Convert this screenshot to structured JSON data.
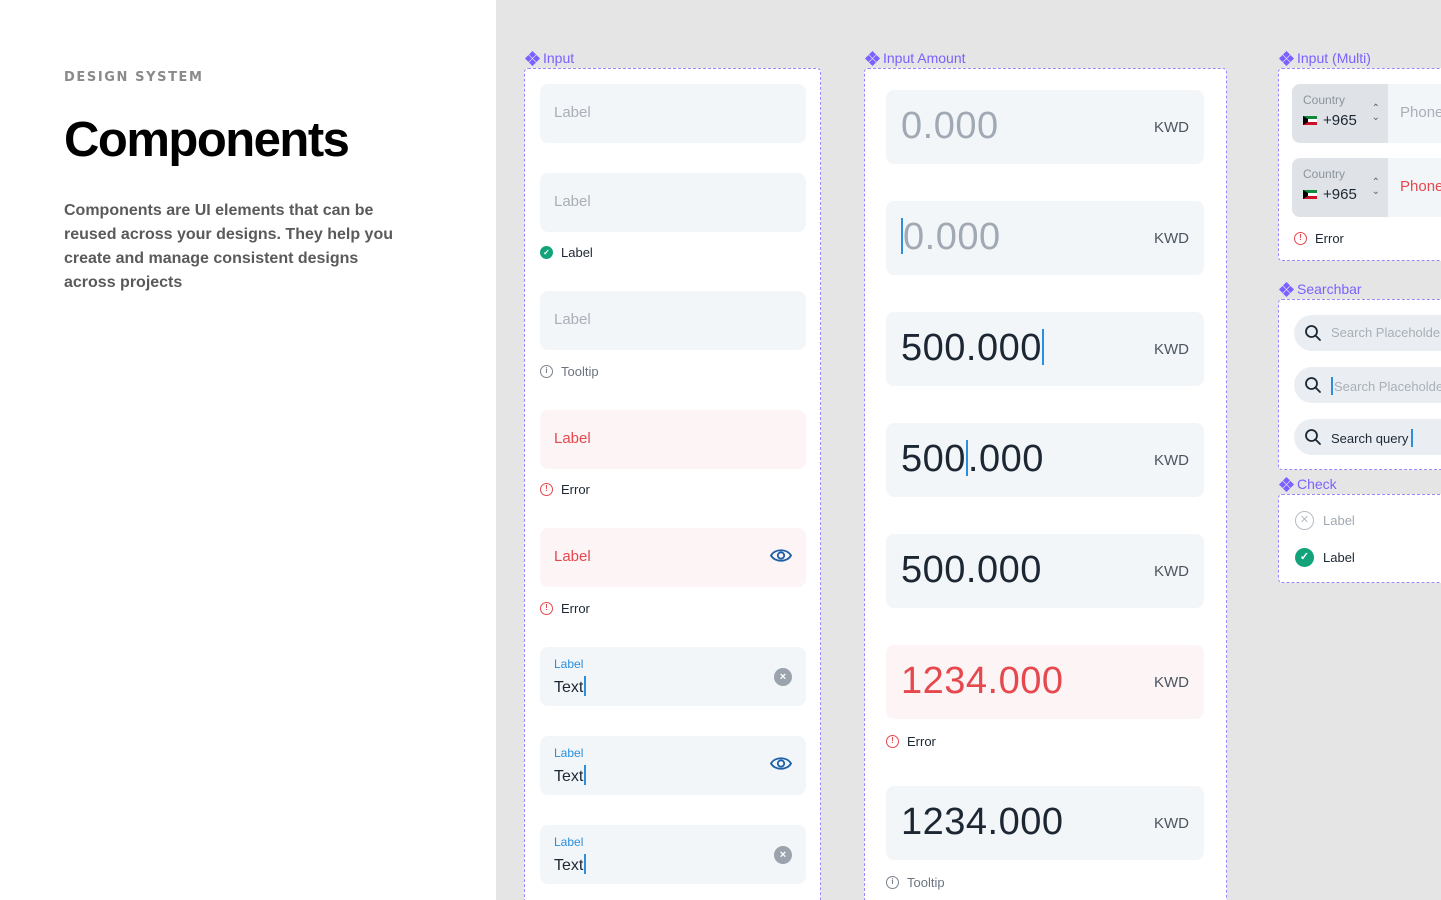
{
  "intro": {
    "eyebrow": "DESIGN SYSTEM",
    "title": "Components",
    "description": "Components are UI elements that can be reused across your designs. They help you create and manage consistent designs across projects"
  },
  "input_frame": {
    "title": "Input",
    "fields": [
      {
        "label": "Label"
      },
      {
        "label": "Label",
        "helper": "Label",
        "helper_icon": "check-circle-icon"
      },
      {
        "label": "Label",
        "helper": "Tooltip",
        "helper_icon": "info-icon"
      },
      {
        "label": "Label",
        "helper": "Error",
        "helper_icon": "error-icon"
      },
      {
        "label": "Label",
        "helper": "Error",
        "helper_icon": "error-icon",
        "right_icon": "eye-icon"
      },
      {
        "label": "Label",
        "value": "Text",
        "right_icon": "clear-icon"
      },
      {
        "label": "Label",
        "value": "Text",
        "right_icon": "eye-icon"
      },
      {
        "label": "Label",
        "value": "Text",
        "right_icon": "clear-icon"
      }
    ],
    "clear_glyph": "×"
  },
  "amount_frame": {
    "title": "Input Amount",
    "currency": "KWD",
    "fields": [
      {
        "value": "0.000"
      },
      {
        "value": "0.000"
      },
      {
        "value": "500.000"
      },
      {
        "value_before": "500",
        "value_after": ".000"
      },
      {
        "value": "500.000"
      },
      {
        "value": "1234.000",
        "helper": "Error"
      },
      {
        "value": "1234.000",
        "helper": "Tooltip"
      }
    ]
  },
  "multi_frame": {
    "title": "Input (Multi)",
    "rows": [
      {
        "country_label": "Country",
        "code": "+965",
        "phone": "Phone"
      },
      {
        "country_label": "Country",
        "code": "+965",
        "phone": "Phone"
      }
    ],
    "helper": "Error"
  },
  "search_frame": {
    "title": "Searchbar",
    "items": [
      {
        "text": "Search Placeholder"
      },
      {
        "text": "Search Placeholder"
      },
      {
        "text": "Search query"
      }
    ]
  },
  "check_frame": {
    "title": "Check",
    "items": [
      {
        "label": "Label",
        "checked": false
      },
      {
        "label": "Label",
        "checked": true
      }
    ]
  },
  "colors": {
    "accent": "#7b61ff",
    "error": "#e5484d",
    "success": "#12a37a",
    "focus": "#2b8fdc",
    "canvas": "#e5e5e5"
  }
}
